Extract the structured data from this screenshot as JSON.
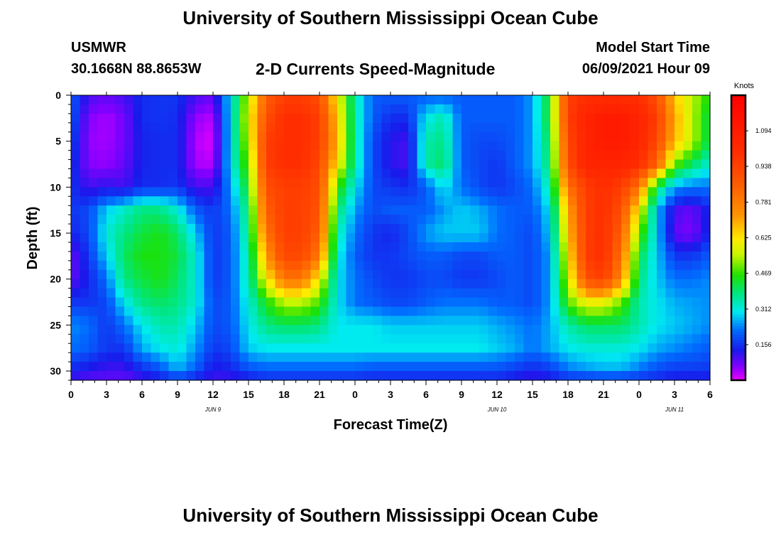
{
  "title_top": "University of Southern Mississippi Ocean Cube",
  "title_bottom": "University of Southern Mississippi Ocean Cube",
  "station": {
    "name": "USMWR",
    "coords": "30.1668N  88.8653W"
  },
  "model_start": {
    "label": "Model Start Time",
    "value": "06/09/2021 Hour 09"
  },
  "chart_data": {
    "type": "heatmap",
    "title": "2-D Currents Speed-Magnitude",
    "xlabel": "Forecast Time(Z)",
    "ylabel": "Depth (ft)",
    "x_range_hours": [
      0,
      54
    ],
    "x_tick_labels": [
      "0",
      "3",
      "6",
      "9",
      "12",
      "15",
      "18",
      "21",
      "0",
      "3",
      "6",
      "9",
      "12",
      "15",
      "18",
      "21",
      "0",
      "3",
      "6"
    ],
    "date_labels": [
      {
        "text": "JUN 9",
        "hour": 12
      },
      {
        "text": "JUN 10",
        "hour": 36
      },
      {
        "text": "JUN 11",
        "hour": 51
      }
    ],
    "y_range_ft": [
      0,
      31
    ],
    "y_ticks": [
      0,
      5,
      10,
      15,
      20,
      25,
      30
    ],
    "y_inverted": true,
    "colorbar": {
      "unit": "Knots",
      "range": [
        0,
        1.25
      ],
      "tick_labels": [
        "1.094",
        "0.938",
        "0.781",
        "0.625",
        "0.469",
        "0.312",
        "0.156"
      ],
      "tick_values": [
        1.094,
        0.938,
        0.781,
        0.625,
        0.469,
        0.312,
        0.156
      ]
    },
    "value_hours": [
      0,
      1.5,
      3,
      4.5,
      6,
      7.5,
      9,
      10.5,
      12,
      13.5,
      15,
      16.5,
      18,
      19.5,
      21,
      22.5,
      24,
      25.5,
      27,
      28.5,
      30,
      31.5,
      33,
      34.5,
      36,
      37.5,
      39,
      40.5,
      42,
      43.5,
      45,
      46.5,
      48,
      49.5,
      51,
      52.5,
      54
    ],
    "value_depths_ft": [
      0,
      2.5,
      5,
      7.5,
      10,
      12.5,
      15,
      17.5,
      20,
      22.5,
      25,
      27.5,
      30,
      31
    ],
    "values_knots": [
      [
        0.2,
        0.1,
        0.08,
        0.1,
        0.15,
        0.16,
        0.16,
        0.1,
        0.08,
        0.3,
        0.55,
        0.85,
        0.95,
        0.95,
        0.9,
        0.6,
        0.35,
        0.2,
        0.2,
        0.2,
        0.2,
        0.2,
        0.2,
        0.2,
        0.2,
        0.2,
        0.25,
        0.45,
        0.95,
        1.0,
        1.0,
        1.0,
        1.0,
        0.9,
        0.65,
        0.55,
        0.45
      ],
      [
        0.2,
        0.06,
        0.04,
        0.07,
        0.15,
        0.16,
        0.15,
        0.05,
        0.03,
        0.3,
        0.58,
        0.9,
        1.0,
        1.0,
        0.95,
        0.65,
        0.35,
        0.2,
        0.15,
        0.15,
        0.3,
        0.35,
        0.2,
        0.2,
        0.2,
        0.2,
        0.25,
        0.45,
        0.95,
        1.05,
        1.1,
        1.1,
        1.05,
        0.95,
        0.7,
        0.55,
        0.4
      ],
      [
        0.18,
        0.05,
        0.04,
        0.07,
        0.14,
        0.15,
        0.15,
        0.03,
        0.01,
        0.3,
        0.55,
        0.95,
        1.0,
        1.0,
        0.95,
        0.68,
        0.35,
        0.18,
        0.12,
        0.1,
        0.35,
        0.38,
        0.2,
        0.18,
        0.18,
        0.2,
        0.25,
        0.42,
        0.92,
        1.05,
        1.1,
        1.1,
        1.05,
        0.92,
        0.68,
        0.55,
        0.4
      ],
      [
        0.16,
        0.06,
        0.05,
        0.08,
        0.14,
        0.15,
        0.15,
        0.04,
        0.03,
        0.3,
        0.5,
        0.95,
        1.0,
        1.0,
        0.92,
        0.62,
        0.35,
        0.18,
        0.12,
        0.1,
        0.35,
        0.4,
        0.2,
        0.18,
        0.16,
        0.2,
        0.25,
        0.4,
        0.9,
        1.05,
        1.05,
        1.05,
        1.0,
        0.85,
        0.5,
        0.4,
        0.32
      ],
      [
        0.16,
        0.1,
        0.12,
        0.1,
        0.15,
        0.15,
        0.16,
        0.1,
        0.1,
        0.25,
        0.45,
        0.9,
        0.95,
        0.95,
        0.9,
        0.48,
        0.3,
        0.18,
        0.16,
        0.15,
        0.2,
        0.3,
        0.22,
        0.18,
        0.16,
        0.18,
        0.22,
        0.35,
        0.8,
        0.95,
        1.0,
        0.95,
        0.8,
        0.4,
        0.25,
        0.22,
        0.22
      ],
      [
        0.16,
        0.18,
        0.28,
        0.33,
        0.38,
        0.38,
        0.32,
        0.2,
        0.16,
        0.22,
        0.4,
        0.85,
        0.95,
        0.95,
        0.88,
        0.4,
        0.25,
        0.18,
        0.2,
        0.2,
        0.2,
        0.25,
        0.28,
        0.26,
        0.22,
        0.2,
        0.2,
        0.3,
        0.7,
        0.95,
        1.0,
        0.9,
        0.6,
        0.28,
        0.1,
        0.08,
        0.15
      ],
      [
        0.14,
        0.18,
        0.32,
        0.38,
        0.42,
        0.45,
        0.4,
        0.28,
        0.16,
        0.2,
        0.38,
        0.8,
        0.95,
        0.95,
        0.85,
        0.35,
        0.22,
        0.16,
        0.14,
        0.18,
        0.25,
        0.28,
        0.28,
        0.28,
        0.22,
        0.2,
        0.18,
        0.28,
        0.65,
        0.95,
        1.0,
        0.85,
        0.5,
        0.28,
        0.08,
        0.06,
        0.15
      ],
      [
        0.08,
        0.16,
        0.28,
        0.4,
        0.45,
        0.45,
        0.42,
        0.32,
        0.16,
        0.2,
        0.35,
        0.72,
        0.92,
        0.92,
        0.78,
        0.32,
        0.2,
        0.16,
        0.16,
        0.18,
        0.2,
        0.2,
        0.18,
        0.18,
        0.2,
        0.2,
        0.18,
        0.25,
        0.6,
        0.95,
        1.0,
        0.8,
        0.42,
        0.28,
        0.16,
        0.16,
        0.2
      ],
      [
        0.08,
        0.14,
        0.22,
        0.38,
        0.42,
        0.45,
        0.4,
        0.32,
        0.16,
        0.2,
        0.35,
        0.6,
        0.8,
        0.8,
        0.6,
        0.3,
        0.22,
        0.18,
        0.16,
        0.16,
        0.18,
        0.18,
        0.16,
        0.16,
        0.18,
        0.2,
        0.18,
        0.25,
        0.55,
        0.9,
        0.95,
        0.75,
        0.38,
        0.28,
        0.22,
        0.22,
        0.24
      ],
      [
        0.16,
        0.16,
        0.18,
        0.3,
        0.38,
        0.4,
        0.38,
        0.32,
        0.18,
        0.2,
        0.32,
        0.45,
        0.55,
        0.55,
        0.48,
        0.3,
        0.22,
        0.2,
        0.18,
        0.18,
        0.2,
        0.22,
        0.22,
        0.22,
        0.2,
        0.2,
        0.18,
        0.25,
        0.48,
        0.6,
        0.6,
        0.5,
        0.35,
        0.3,
        0.26,
        0.25,
        0.24
      ],
      [
        0.24,
        0.22,
        0.16,
        0.22,
        0.3,
        0.35,
        0.35,
        0.28,
        0.18,
        0.2,
        0.3,
        0.38,
        0.4,
        0.4,
        0.38,
        0.3,
        0.3,
        0.3,
        0.28,
        0.28,
        0.28,
        0.28,
        0.28,
        0.28,
        0.26,
        0.24,
        0.22,
        0.26,
        0.35,
        0.4,
        0.4,
        0.4,
        0.35,
        0.3,
        0.28,
        0.26,
        0.24
      ],
      [
        0.22,
        0.2,
        0.16,
        0.16,
        0.26,
        0.3,
        0.32,
        0.25,
        0.16,
        0.18,
        0.28,
        0.3,
        0.3,
        0.3,
        0.3,
        0.3,
        0.3,
        0.3,
        0.3,
        0.3,
        0.3,
        0.3,
        0.3,
        0.3,
        0.28,
        0.26,
        0.22,
        0.26,
        0.3,
        0.32,
        0.32,
        0.32,
        0.3,
        0.26,
        0.24,
        0.22,
        0.2
      ],
      [
        0.14,
        0.12,
        0.1,
        0.1,
        0.14,
        0.18,
        0.26,
        0.2,
        0.12,
        0.14,
        0.18,
        0.2,
        0.2,
        0.2,
        0.2,
        0.2,
        0.2,
        0.18,
        0.18,
        0.18,
        0.18,
        0.18,
        0.18,
        0.18,
        0.18,
        0.16,
        0.14,
        0.16,
        0.22,
        0.24,
        0.26,
        0.26,
        0.22,
        0.18,
        0.16,
        0.16,
        0.16
      ],
      [
        0.1,
        0.08,
        0.08,
        0.08,
        0.1,
        0.12,
        0.14,
        0.12,
        0.1,
        0.1,
        0.12,
        0.14,
        0.14,
        0.14,
        0.14,
        0.14,
        0.14,
        0.14,
        0.14,
        0.14,
        0.14,
        0.14,
        0.14,
        0.14,
        0.14,
        0.12,
        0.1,
        0.12,
        0.14,
        0.14,
        0.14,
        0.14,
        0.14,
        0.14,
        0.12,
        0.12,
        0.12
      ]
    ]
  }
}
